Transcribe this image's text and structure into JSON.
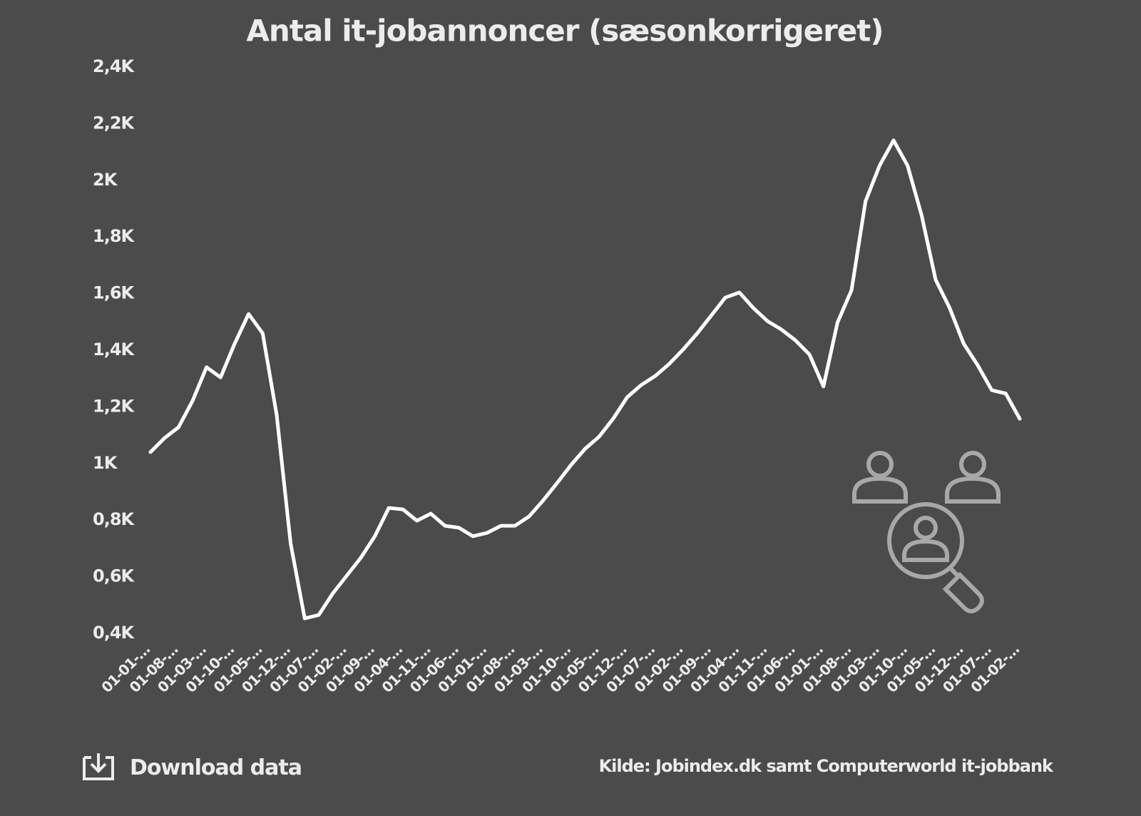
{
  "chart_data": {
    "type": "line",
    "title": "Antal it-jobannoncer (sæsonkorrigeret)",
    "categories": [
      "01-01-…",
      null,
      "01-08-…",
      null,
      "01-03-…",
      null,
      "01-10-…",
      null,
      "01-05-…",
      null,
      "01-12-…",
      null,
      "01-07-…",
      null,
      "01-02-…",
      null,
      "01-09-…",
      null,
      "01-04-…",
      null,
      "01-11-…",
      null,
      "01-06-…",
      null,
      "01-01-…",
      null,
      "01-08-…",
      null,
      "01-03-…",
      null,
      "01-10-…",
      null,
      "01-05-…",
      null,
      "01-12-…",
      null,
      "01-07-…",
      null,
      "01-02-…",
      null,
      "01-09-…",
      null,
      "01-04-…",
      null,
      "01-11-…",
      null,
      "01-06-…",
      null,
      "01-01-…",
      null,
      "01-08-…",
      null,
      "01-03-…",
      null,
      "01-10-…",
      null,
      "01-05-…",
      null,
      "01-12-…",
      null,
      "01-07-…",
      null,
      "01-02-…"
    ],
    "values": [
      1040,
      1090,
      1128,
      1221,
      1340,
      1304,
      1423,
      1528,
      1460,
      1171,
      717,
      453,
      465,
      541,
      604,
      667,
      743,
      843,
      838,
      798,
      823,
      780,
      773,
      743,
      755,
      780,
      780,
      813,
      869,
      931,
      995,
      1052,
      1095,
      1158,
      1234,
      1277,
      1309,
      1352,
      1403,
      1460,
      1523,
      1586,
      1604,
      1549,
      1503,
      1473,
      1435,
      1385,
      1272,
      1498,
      1612,
      1926,
      2052,
      2141,
      2052,
      1876,
      1649,
      1549,
      1423,
      1347,
      1259,
      1247,
      1158
    ],
    "color": "#ffffff",
    "ylim": [
      400,
      2400
    ],
    "yticks": [
      {
        "value": 400,
        "label": "0,4K"
      },
      {
        "value": 600,
        "label": "0,6K"
      },
      {
        "value": 800,
        "label": "0,8K"
      },
      {
        "value": 1000,
        "label": "1K"
      },
      {
        "value": 1200,
        "label": "1,2K"
      },
      {
        "value": 1400,
        "label": "1,4K"
      },
      {
        "value": 1600,
        "label": "1,6K"
      },
      {
        "value": 1800,
        "label": "1,8K"
      },
      {
        "value": 2000,
        "label": "2K"
      },
      {
        "value": 2200,
        "label": "2,2K"
      },
      {
        "value": 2400,
        "label": "2,4K"
      }
    ],
    "grid": false
  },
  "footer": {
    "download": "Download data",
    "source": "Kilde: Jobindex.dk samt Computerworld it-jobbank"
  }
}
